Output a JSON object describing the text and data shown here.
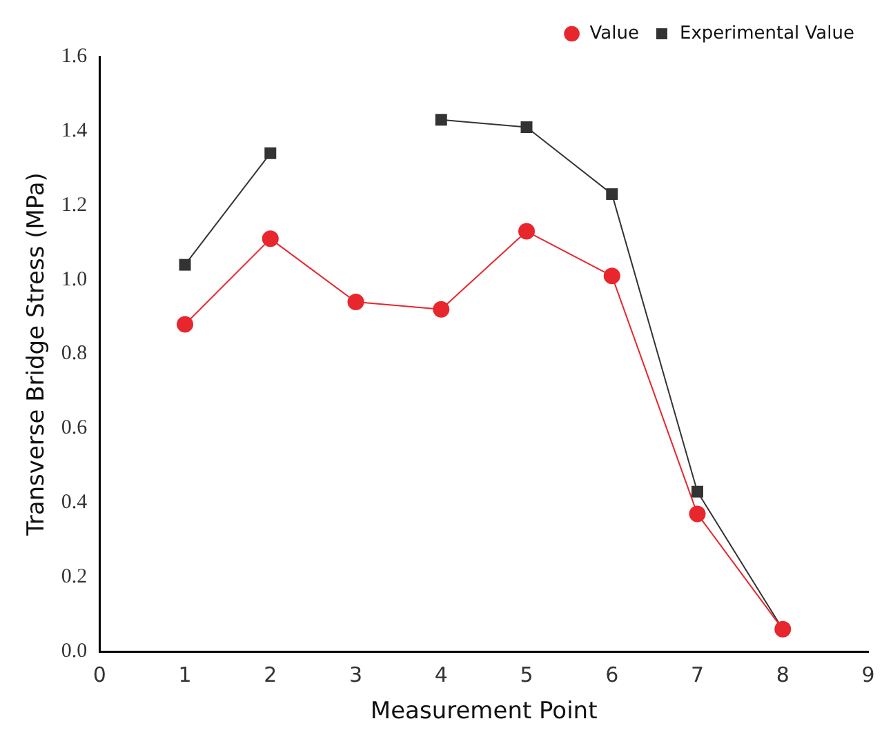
{
  "chart_data": {
    "type": "line",
    "xlabel": "Measurement Point",
    "ylabel": "Transverse Bridge Stress (MPa)",
    "x": [
      1,
      2,
      3,
      4,
      5,
      6,
      7,
      8
    ],
    "series": [
      {
        "name": "Experimental Value",
        "color": "#333333",
        "marker": "square",
        "values": [
          1.04,
          1.34,
          null,
          1.43,
          1.41,
          1.23,
          0.43,
          0.06
        ]
      },
      {
        "name": "Value",
        "color": "#e8262d",
        "marker": "circle",
        "values": [
          0.88,
          1.11,
          0.94,
          0.92,
          1.13,
          1.01,
          0.37,
          0.06
        ]
      }
    ],
    "xlim": [
      0,
      9
    ],
    "xticks": [
      0,
      1,
      2,
      3,
      4,
      5,
      6,
      7,
      8,
      9
    ],
    "ylim": [
      0,
      1.6
    ],
    "yticks": [
      {
        "value": 0,
        "label": "0.0"
      },
      {
        "value": 0.2,
        "label": "0.2"
      },
      {
        "value": 0.4,
        "label": "0.4"
      },
      {
        "value": 0.6,
        "label": "0.6"
      },
      {
        "value": 0.8,
        "label": "0.8"
      },
      {
        "value": 1,
        "label": "1.0"
      },
      {
        "value": 1.2,
        "label": "1.2"
      },
      {
        "value": 1.4,
        "label": "1.4"
      },
      {
        "value": 1.6,
        "label": "1.6"
      }
    ],
    "grid": false,
    "legend": "top right",
    "line_style": "solid"
  }
}
